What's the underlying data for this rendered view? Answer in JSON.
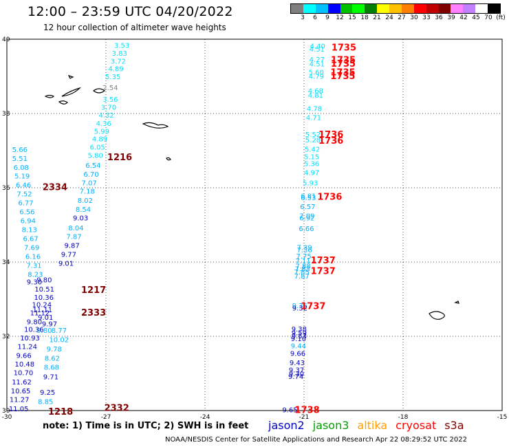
{
  "header": {
    "title": "12:00 – 23:59 UTC 04/20/2022",
    "subtitle": "12 hour collection of altimeter wave heights"
  },
  "colorbar": {
    "colors": [
      "#7f7f7f",
      "#00ffff",
      "#00c0ff",
      "#0000ff",
      "#00c000",
      "#00ff00",
      "#008000",
      "#ffff00",
      "#ffc000",
      "#ff8000",
      "#ff0000",
      "#c00000",
      "#800000",
      "#ff80ff",
      "#c080ff",
      "#ffffff",
      "#000000"
    ],
    "labels": [
      "3",
      "6",
      "9",
      "12",
      "15",
      "18",
      "21",
      "24",
      "27",
      "30",
      "33",
      "36",
      "39",
      "42",
      "45",
      "70",
      "(ft)"
    ]
  },
  "axes": {
    "lon_ticks": [
      "-30",
      "-27",
      "-24",
      "-21",
      "-18",
      "-15"
    ],
    "lat_ticks": [
      "40",
      "38",
      "36",
      "34",
      "32",
      "30"
    ]
  },
  "times": [
    {
      "text": "1735",
      "color": "#ff0000",
      "lon": -20.17,
      "lat": 39.79
    },
    {
      "text": "1735",
      "color": "#ff0000",
      "lon": -20.19,
      "lat": 39.45
    },
    {
      "text": "1735",
      "color": "#ff0000",
      "lon": -20.19,
      "lat": 39.35
    },
    {
      "text": "1735",
      "color": "#ff0000",
      "lon": -20.2,
      "lat": 39.12
    },
    {
      "text": "1735",
      "color": "#ff0000",
      "lon": -20.2,
      "lat": 39.02
    },
    {
      "text": "1736",
      "color": "#ff0000",
      "lon": -20.56,
      "lat": 37.44
    },
    {
      "text": "1736",
      "color": "#ff0000",
      "lon": -20.56,
      "lat": 37.28
    },
    {
      "text": "1736",
      "color": "#ff0000",
      "lon": -20.6,
      "lat": 35.77
    },
    {
      "text": "1737",
      "color": "#ff0000",
      "lon": -20.8,
      "lat": 34.06
    },
    {
      "text": "1737",
      "color": "#ff0000",
      "lon": -20.8,
      "lat": 33.77
    },
    {
      "text": "1737",
      "color": "#ff0000",
      "lon": -21.1,
      "lat": 32.82
    },
    {
      "text": "1738",
      "color": "#ff0000",
      "lon": -21.28,
      "lat": 30.03
    },
    {
      "text": "1216",
      "color": "#800000",
      "lon": -26.96,
      "lat": 36.83
    },
    {
      "text": "1217",
      "color": "#800000",
      "lon": -27.75,
      "lat": 33.26
    },
    {
      "text": "1218",
      "color": "#800000",
      "lon": -28.75,
      "lat": 29.98
    },
    {
      "text": "2334",
      "color": "#800000",
      "lon": -28.92,
      "lat": 36.03
    },
    {
      "text": "2333",
      "color": "#800000",
      "lon": -27.75,
      "lat": 32.65
    },
    {
      "text": "2332",
      "color": "#800000",
      "lon": -27.05,
      "lat": 30.08
    }
  ],
  "tracks": [
    {
      "color": "#00e0ff",
      "points": [
        {
          "v": "3.53",
          "lon": -26.75,
          "lat": 39.84
        },
        {
          "v": "3.83",
          "lon": -26.82,
          "lat": 39.63
        },
        {
          "v": "3.72",
          "lon": -26.86,
          "lat": 39.42
        },
        {
          "v": "4.89",
          "lon": -26.93,
          "lat": 39.21
        },
        {
          "v": "5.35",
          "lon": -27.02,
          "lat": 39.0
        },
        {
          "v": "3.56",
          "lon": -27.1,
          "lat": 38.39
        },
        {
          "v": "3.70",
          "lon": -27.15,
          "lat": 38.18
        },
        {
          "v": "4.32",
          "lon": -27.22,
          "lat": 37.96
        },
        {
          "v": "4.36",
          "lon": -27.3,
          "lat": 37.74
        },
        {
          "v": "5.99",
          "lon": -27.36,
          "lat": 37.53
        },
        {
          "v": "4.89",
          "lon": -27.42,
          "lat": 37.32
        },
        {
          "v": "6.05",
          "lon": -27.49,
          "lat": 37.1
        },
        {
          "v": "5.80",
          "lon": -27.55,
          "lat": 36.88
        }
      ]
    },
    {
      "color": "#808080",
      "points": [
        {
          "v": "2.54",
          "lon": -27.1,
          "lat": 38.7
        }
      ]
    },
    {
      "color": "#00b0ff",
      "points": [
        {
          "v": "6.54",
          "lon": -27.62,
          "lat": 36.61
        },
        {
          "v": "6.70",
          "lon": -27.68,
          "lat": 36.37
        },
        {
          "v": "7.07",
          "lon": -27.74,
          "lat": 36.14
        },
        {
          "v": "7.18",
          "lon": -27.8,
          "lat": 35.92
        },
        {
          "v": "8.02",
          "lon": -27.86,
          "lat": 35.67
        },
        {
          "v": "8.54",
          "lon": -27.92,
          "lat": 35.43
        },
        {
          "v": "8.04",
          "lon": -28.14,
          "lat": 34.93
        },
        {
          "v": "7.87",
          "lon": -28.2,
          "lat": 34.69
        },
        {
          "v": "8.77",
          "lon": -28.65,
          "lat": 32.17
        },
        {
          "v": "10.02",
          "lon": -28.72,
          "lat": 31.92
        },
        {
          "v": "9.78",
          "lon": -28.8,
          "lat": 31.67
        },
        {
          "v": "8.62",
          "lon": -28.86,
          "lat": 31.42
        },
        {
          "v": "8.68",
          "lon": -28.88,
          "lat": 31.18
        },
        {
          "v": "8.85",
          "lon": -29.06,
          "lat": 30.25
        }
      ]
    },
    {
      "color": "#0000c0",
      "points": [
        {
          "v": "9.03",
          "lon": -28.0,
          "lat": 35.19
        },
        {
          "v": "9.87",
          "lon": -28.26,
          "lat": 34.45
        },
        {
          "v": "9.77",
          "lon": -28.36,
          "lat": 34.21
        },
        {
          "v": "9.01",
          "lon": -28.44,
          "lat": 33.97
        },
        {
          "v": "9.71",
          "lon": -28.9,
          "lat": 30.92
        },
        {
          "v": "9.25",
          "lon": -29.0,
          "lat": 30.5
        }
      ]
    },
    {
      "color": "#00b0ff",
      "points": [
        {
          "v": "5.66",
          "lon": -29.84,
          "lat": 37.04
        },
        {
          "v": "5.51",
          "lon": -29.84,
          "lat": 36.8
        },
        {
          "v": "6.08",
          "lon": -29.8,
          "lat": 36.56
        },
        {
          "v": "5.19",
          "lon": -29.77,
          "lat": 36.32
        },
        {
          "v": "6.46",
          "lon": -29.73,
          "lat": 36.08
        },
        {
          "v": "7.52",
          "lon": -29.7,
          "lat": 35.84
        },
        {
          "v": "6.77",
          "lon": -29.66,
          "lat": 35.6
        },
        {
          "v": "6.56",
          "lon": -29.62,
          "lat": 35.36
        },
        {
          "v": "6.94",
          "lon": -29.59,
          "lat": 35.12
        },
        {
          "v": "8.13",
          "lon": -29.55,
          "lat": 34.88
        },
        {
          "v": "6.67",
          "lon": -29.51,
          "lat": 34.64
        },
        {
          "v": "7.69",
          "lon": -29.48,
          "lat": 34.4
        },
        {
          "v": "6.16",
          "lon": -29.44,
          "lat": 34.16
        },
        {
          "v": "7.31",
          "lon": -29.41,
          "lat": 33.92
        },
        {
          "v": "8.23",
          "lon": -29.37,
          "lat": 33.68
        },
        {
          "v": "9.80",
          "lon": -29.1,
          "lat": 32.17
        }
      ]
    },
    {
      "color": "#0000c0",
      "points": [
        {
          "v": "9.30",
          "lon": -29.4,
          "lat": 33.47
        },
        {
          "v": "9.80",
          "lon": -29.1,
          "lat": 33.53
        },
        {
          "v": "10.51",
          "lon": -29.16,
          "lat": 33.28
        },
        {
          "v": "10.36",
          "lon": -29.18,
          "lat": 33.06
        },
        {
          "v": "10.24",
          "lon": -29.24,
          "lat": 32.86
        },
        {
          "v": "11.11",
          "lon": -29.22,
          "lat": 32.72
        },
        {
          "v": "11.12",
          "lon": -29.3,
          "lat": 32.64
        },
        {
          "v": "9.01",
          "lon": -29.06,
          "lat": 32.52
        },
        {
          "v": "9.80",
          "lon": -29.4,
          "lat": 32.4
        },
        {
          "v": "9.97",
          "lon": -28.94,
          "lat": 32.34
        },
        {
          "v": "10.36",
          "lon": -29.48,
          "lat": 32.19
        },
        {
          "v": "10.93",
          "lon": -29.6,
          "lat": 31.96
        },
        {
          "v": "11.24",
          "lon": -29.68,
          "lat": 31.73
        },
        {
          "v": "9.66",
          "lon": -29.72,
          "lat": 31.49
        },
        {
          "v": "10.48",
          "lon": -29.76,
          "lat": 31.26
        },
        {
          "v": "10.70",
          "lon": -29.8,
          "lat": 31.03
        },
        {
          "v": "11.62",
          "lon": -29.85,
          "lat": 30.78
        },
        {
          "v": "10.65",
          "lon": -29.88,
          "lat": 30.54
        },
        {
          "v": "11.27",
          "lon": -29.92,
          "lat": 30.31
        },
        {
          "v": "11.05",
          "lon": -29.94,
          "lat": 30.06
        }
      ]
    },
    {
      "color": "#00e0ff",
      "points": [
        {
          "v": "4.40",
          "lon": -20.82,
          "lat": 39.82
        },
        {
          "v": "4.51",
          "lon": -20.84,
          "lat": 39.74
        },
        {
          "v": "4.27",
          "lon": -20.84,
          "lat": 39.46
        },
        {
          "v": "4.51",
          "lon": -20.84,
          "lat": 39.34
        },
        {
          "v": "5.60",
          "lon": -20.86,
          "lat": 39.12
        },
        {
          "v": "4.79",
          "lon": -20.86,
          "lat": 39.01
        },
        {
          "v": "4.68",
          "lon": -20.88,
          "lat": 38.62
        },
        {
          "v": "4.81",
          "lon": -20.88,
          "lat": 38.5
        },
        {
          "v": "4.78",
          "lon": -20.92,
          "lat": 38.14
        },
        {
          "v": "4.71",
          "lon": -20.94,
          "lat": 37.9
        },
        {
          "v": "5.52",
          "lon": -20.96,
          "lat": 37.44
        },
        {
          "v": "5.28",
          "lon": -20.96,
          "lat": 37.3
        },
        {
          "v": "5.42",
          "lon": -20.98,
          "lat": 37.05
        },
        {
          "v": "5.15",
          "lon": -21.0,
          "lat": 36.84
        },
        {
          "v": "5.36",
          "lon": -21.0,
          "lat": 36.66
        },
        {
          "v": "4.97",
          "lon": -21.0,
          "lat": 36.42
        },
        {
          "v": "5.93",
          "lon": -21.04,
          "lat": 36.14
        }
      ]
    },
    {
      "color": "#00b0ff",
      "points": [
        {
          "v": "6.81",
          "lon": -21.1,
          "lat": 35.79
        },
        {
          "v": "6.53",
          "lon": -21.1,
          "lat": 35.74
        },
        {
          "v": "6.57",
          "lon": -21.12,
          "lat": 35.5
        },
        {
          "v": "7.09",
          "lon": -21.14,
          "lat": 35.25
        },
        {
          "v": "6.92",
          "lon": -21.14,
          "lat": 35.19
        },
        {
          "v": "6.66",
          "lon": -21.16,
          "lat": 34.91
        },
        {
          "v": "7.39",
          "lon": -21.22,
          "lat": 34.4
        },
        {
          "v": "7.36",
          "lon": -21.22,
          "lat": 34.33
        },
        {
          "v": "7.75",
          "lon": -21.24,
          "lat": 34.17
        },
        {
          "v": "7.11",
          "lon": -21.26,
          "lat": 34.04
        },
        {
          "v": "7.88",
          "lon": -21.26,
          "lat": 33.9
        },
        {
          "v": "7.83",
          "lon": -21.28,
          "lat": 33.82
        },
        {
          "v": "7.85",
          "lon": -21.3,
          "lat": 33.74
        },
        {
          "v": "7.87",
          "lon": -21.3,
          "lat": 33.63
        },
        {
          "v": "9.36",
          "lon": -21.36,
          "lat": 32.83
        },
        {
          "v": "9.44",
          "lon": -21.4,
          "lat": 31.75
        }
      ]
    },
    {
      "color": "#0000c0",
      "points": [
        {
          "v": "9.32",
          "lon": -21.36,
          "lat": 32.77
        },
        {
          "v": "9.38",
          "lon": -21.38,
          "lat": 32.2
        },
        {
          "v": "9.59",
          "lon": -21.38,
          "lat": 32.1
        },
        {
          "v": "9.53",
          "lon": -21.38,
          "lat": 32.02
        },
        {
          "v": "9.10",
          "lon": -21.4,
          "lat": 31.94
        },
        {
          "v": "9.66",
          "lon": -21.42,
          "lat": 31.55
        },
        {
          "v": "9.43",
          "lon": -21.44,
          "lat": 31.3
        },
        {
          "v": "9.37",
          "lon": -21.46,
          "lat": 31.1
        },
        {
          "v": "9.30",
          "lon": -21.46,
          "lat": 31.0
        },
        {
          "v": "9.74",
          "lon": -21.48,
          "lat": 30.93
        },
        {
          "v": "9.65",
          "lon": -21.66,
          "lat": 30.03
        }
      ]
    }
  ],
  "note": "note:  1) Time is in UTC; 2) SWH is in feet",
  "legend": [
    {
      "name": "jason2",
      "color": "#0000c0"
    },
    {
      "name": "jason3",
      "color": "#00a000"
    },
    {
      "name": "altika",
      "color": "#ffa000"
    },
    {
      "name": "cryosat",
      "color": "#ff0000"
    },
    {
      "name": "s3a",
      "color": "#800000"
    }
  ],
  "footer": "NOAA/NESDIS Center for Satellite Applications and Research     Apr 22 08:29:52 UTC 2022"
}
